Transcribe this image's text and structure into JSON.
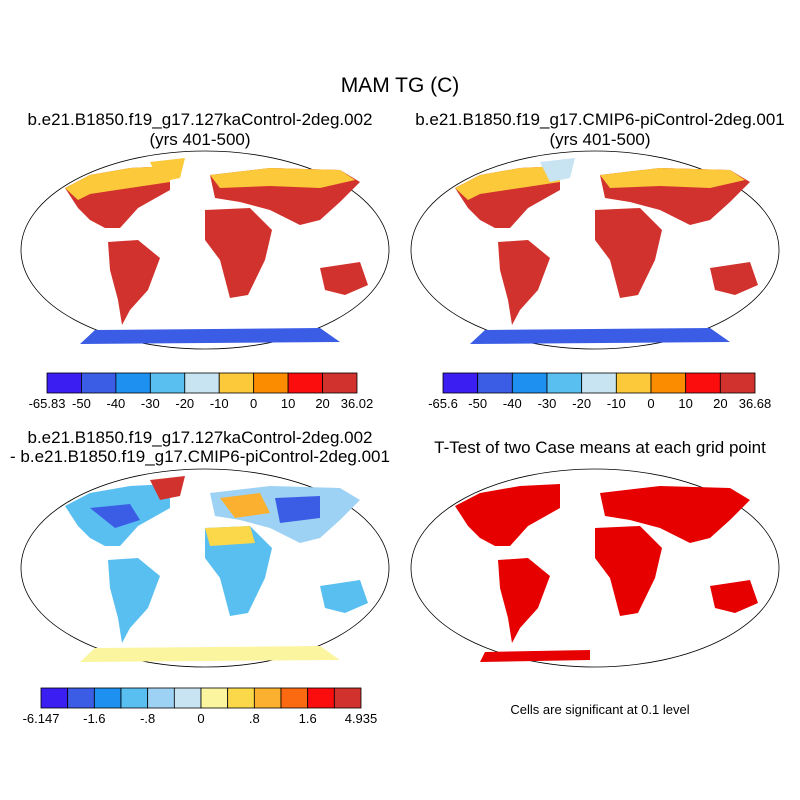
{
  "title": "MAM TG (C)",
  "panels": [
    {
      "title_line1": "b.e21.B1850.f19_g17.127kaControl-2deg.002",
      "title_line2": "(yrs 401-500)",
      "colorbar_labels": [
        "-65.83",
        "-50",
        "-40",
        "-30",
        "-20",
        "-10",
        "0",
        "10",
        "20",
        "36.02"
      ],
      "colorbar_colors": [
        "#3a1ef2",
        "#3b5de6",
        "#1e90f0",
        "#58bff0",
        "#c8e4f2",
        "#fbc93a",
        "#fb8c00",
        "#fb0d0d",
        "#d2322d"
      ]
    },
    {
      "title_line1": "b.e21.B1850.f19_g17.CMIP6-piControl-2deg.001",
      "title_line2": "(yrs 401-500)",
      "colorbar_labels": [
        "-65.6",
        "-50",
        "-40",
        "-30",
        "-20",
        "-10",
        "0",
        "10",
        "20",
        "36.68"
      ],
      "colorbar_colors": [
        "#3a1ef2",
        "#3b5de6",
        "#1e90f0",
        "#58bff0",
        "#c8e4f2",
        "#fbc93a",
        "#fb8c00",
        "#fb0d0d",
        "#d2322d"
      ]
    },
    {
      "title_line1": "b.e21.B1850.f19_g17.127kaControl-2deg.002",
      "title_line2": "- b.e21.B1850.f19_g17.CMIP6-piControl-2deg.001",
      "colorbar_labels": [
        "-6.147",
        "-1.6",
        "-.8",
        "0",
        ".8",
        "1.6",
        "4.935"
      ],
      "colorbar_label_slots": [
        0,
        2,
        4,
        6,
        8,
        10,
        12
      ],
      "colorbar_colors": [
        "#3a1ef2",
        "#3b5de6",
        "#1e90f0",
        "#58bff0",
        "#9ed2f4",
        "#c8e4f2",
        "#fbf5a0",
        "#fbd84a",
        "#fbb030",
        "#fb6a10",
        "#fb0d0d",
        "#d2322d"
      ]
    },
    {
      "title_line1": "T-Test of two Case means at each grid point",
      "note": "Cells are significant at 0.1 level",
      "significant_color": "#e60000"
    }
  ]
}
